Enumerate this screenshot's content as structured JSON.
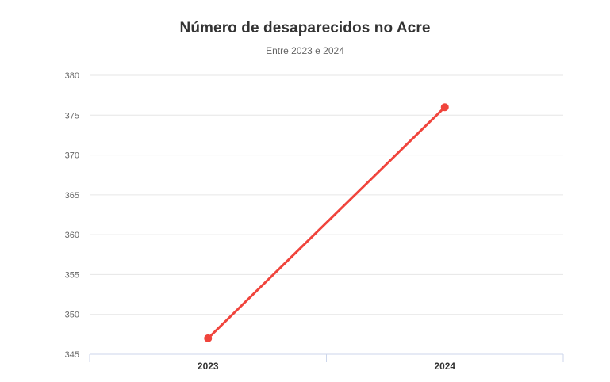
{
  "chart_data": {
    "type": "line",
    "title": "Número de desaparecidos no Acre",
    "subtitle": "Entre 2023 e 2024",
    "categories": [
      "2023",
      "2024"
    ],
    "values": [
      347,
      376
    ],
    "xlabel": "",
    "ylabel": "",
    "ylim": [
      345,
      380
    ],
    "yticks": [
      345,
      350,
      355,
      360,
      365,
      370,
      375,
      380
    ],
    "grid": true,
    "legend": false,
    "colors": {
      "series_line": "#f0443c",
      "marker_fill": "#f0443c",
      "gridline": "#e6e6e6",
      "axis_line": "#ccd6eb",
      "tick_mark": "#ccd6eb",
      "ytick_label": "#666666",
      "xtick_label": "#333333",
      "title": "#333333",
      "subtitle": "#666666",
      "background": "#ffffff"
    }
  }
}
